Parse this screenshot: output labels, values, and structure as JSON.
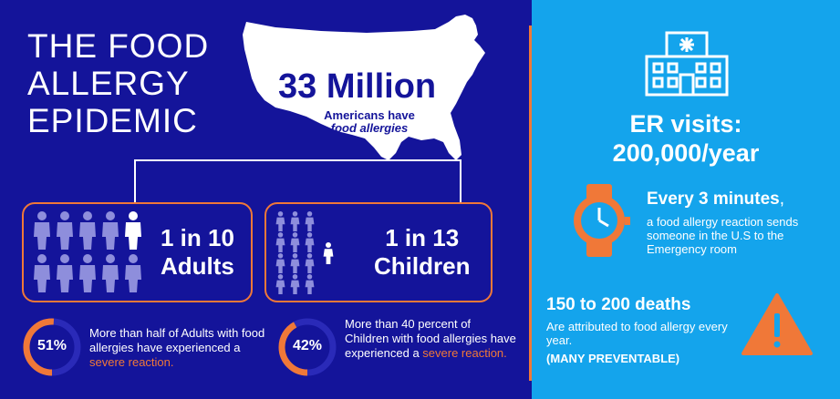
{
  "left": {
    "title": [
      "THE FOOD",
      "ALLERGY",
      "EPIDEMIC"
    ],
    "main_stat": {
      "value": "33 Million",
      "caption_line1": "Americans have",
      "caption_line2": "food allergies"
    },
    "adults": {
      "line1": "1 in 10",
      "line2": "Adults",
      "highlighted_of": 10,
      "highlighted_index": 5
    },
    "children": {
      "line1": "1 in 13",
      "line2": "Children",
      "highlighted_of": 13,
      "highlighted_index": 13
    },
    "adult_severe": {
      "percent_label": "51%",
      "percent_value": 51,
      "text_before": "More than half of Adults with food allergies have experienced a ",
      "text_highlight": "severe reaction."
    },
    "child_severe": {
      "percent_label": "42%",
      "percent_value": 42,
      "text_before": "More than 40 percent of Children with food allergies have experienced a ",
      "text_highlight": "severe reaction."
    }
  },
  "right": {
    "er_title_line1": "ER visits:",
    "er_title_line2": "200,000/year",
    "every": {
      "heading": "Every 3 minutes",
      "heading_suffix": ",",
      "text": "a food allergy reaction sends someone in the U.S to the Emergency room"
    },
    "deaths": {
      "heading": "150 to 200 deaths",
      "text": "Are attributed to food allergy every year.",
      "note": "(MANY PREVENTABLE)"
    }
  },
  "colors": {
    "navy": "#14149a",
    "sky": "#14a4ec",
    "orange": "#f07838",
    "person": "#8e8edc",
    "white": "#ffffff"
  },
  "icons": [
    "usa-map-icon",
    "adult-person-icon",
    "child-person-icon",
    "hospital-icon",
    "watch-icon",
    "warning-icon"
  ]
}
